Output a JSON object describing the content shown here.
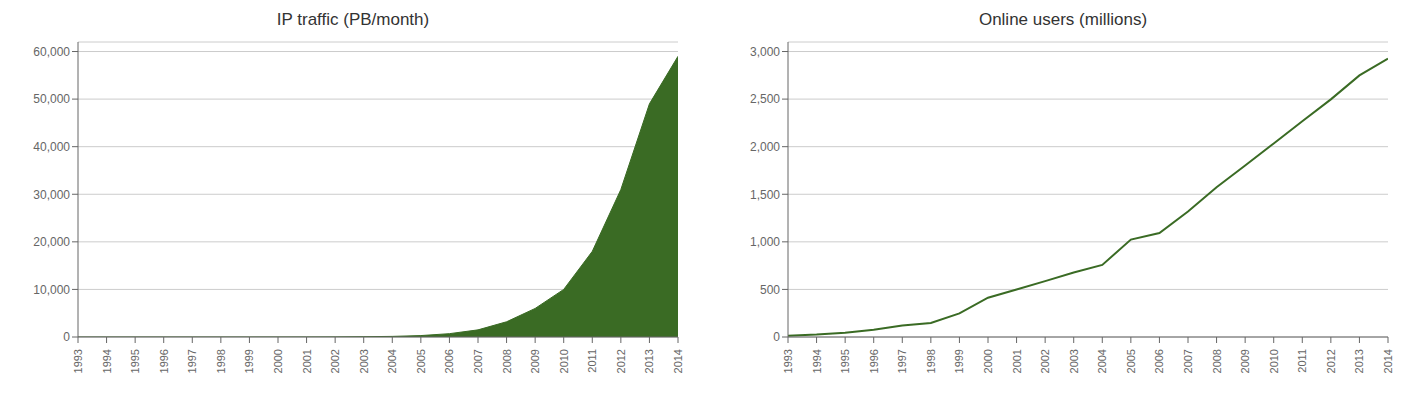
{
  "chart_data": [
    {
      "type": "area",
      "title": "IP traffic (PB/month)",
      "x": [
        1993,
        1994,
        1995,
        1996,
        1997,
        1998,
        1999,
        2000,
        2001,
        2002,
        2003,
        2004,
        2005,
        2006,
        2007,
        2008,
        2009,
        2010,
        2011,
        2012,
        2013,
        2014
      ],
      "values": [
        0.1,
        0.2,
        0.3,
        0.5,
        0.8,
        1.5,
        3,
        6,
        12,
        25,
        60,
        130,
        300,
        700,
        1500,
        3200,
        6000,
        10000,
        18000,
        31000,
        49000,
        59000
      ],
      "color": "#3a6b24",
      "xlim": [
        1993,
        2014
      ],
      "xticks": [
        1993,
        1994,
        1995,
        1996,
        1997,
        1998,
        1999,
        2000,
        2001,
        2002,
        2003,
        2004,
        2005,
        2006,
        2007,
        2008,
        2009,
        2010,
        2011,
        2012,
        2013,
        2014
      ],
      "ylim": [
        0,
        62000
      ],
      "yticks": [
        0,
        {
          "value": 10000,
          "label": "10,000"
        },
        {
          "value": 20000,
          "label": "20,000"
        },
        {
          "value": 30000,
          "label": "30,000"
        },
        {
          "value": 40000,
          "label": "40,000"
        },
        {
          "value": 50000,
          "label": "50,000"
        },
        {
          "value": 60000,
          "label": "60,000"
        }
      ],
      "grid": true
    },
    {
      "type": "line",
      "title": "Online users (millions)",
      "x": [
        1993,
        1994,
        1995,
        1996,
        1997,
        1998,
        1999,
        2000,
        2001,
        2002,
        2003,
        2004,
        2005,
        2006,
        2007,
        2008,
        2009,
        2010,
        2011,
        2012,
        2013,
        2014
      ],
      "values": [
        14,
        26,
        45,
        77,
        120,
        148,
        248,
        413,
        500,
        587,
        677,
        757,
        1024,
        1093,
        1319,
        1574,
        1802,
        2034,
        2267,
        2497,
        2749,
        2925
      ],
      "color": "#3a6b24",
      "xlim": [
        1993,
        2014
      ],
      "xticks": [
        1993,
        1994,
        1995,
        1996,
        1997,
        1998,
        1999,
        2000,
        2001,
        2002,
        2003,
        2004,
        2005,
        2006,
        2007,
        2008,
        2009,
        2010,
        2011,
        2012,
        2013,
        2014
      ],
      "ylim": [
        0,
        3100
      ],
      "yticks": [
        0,
        500,
        {
          "value": 1000,
          "label": "1,000"
        },
        {
          "value": 1500,
          "label": "1,500"
        },
        {
          "value": 2000,
          "label": "2,000"
        },
        {
          "value": 2500,
          "label": "2,500"
        },
        {
          "value": 3000,
          "label": "3,000"
        }
      ],
      "grid": true
    }
  ]
}
